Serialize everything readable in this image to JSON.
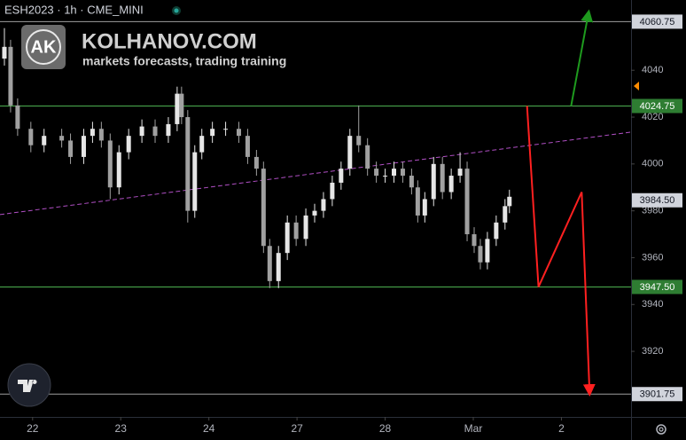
{
  "header": {
    "symbol": "ESH2023 · 1h · CME_MINI",
    "logo": "AK",
    "brand": "KOLHANOV.COM",
    "tagline": "markets forecasts, trading training"
  },
  "chart_data": {
    "type": "candlestick",
    "up_color": "#e6e6e6",
    "down_color": "#a0a0a0",
    "xlim": [
      -0.37,
      6.79
    ],
    "ylim": [
      3892,
      4070
    ],
    "xticks": [
      {
        "value": 0,
        "label": "22"
      },
      {
        "value": 1,
        "label": "23"
      },
      {
        "value": 2,
        "label": "24"
      },
      {
        "value": 3,
        "label": "27"
      },
      {
        "value": 4,
        "label": "28"
      },
      {
        "value": 5,
        "label": "Mar"
      },
      {
        "value": 6,
        "label": "2"
      }
    ],
    "yticks": [
      4040,
      4020,
      4000,
      3980,
      3960,
      3940,
      3920
    ],
    "x": [
      -0.32,
      -0.25,
      -0.17,
      -0.02,
      0.13,
      0.33,
      0.43,
      0.58,
      0.68,
      0.78,
      0.88,
      0.98,
      1.09,
      1.24,
      1.39,
      1.54,
      1.64,
      1.69,
      1.76,
      1.84,
      1.92,
      2.04,
      2.19,
      2.34,
      2.44,
      2.54,
      2.62,
      2.69,
      2.79,
      2.89,
      2.99,
      3.1,
      3.2,
      3.3,
      3.4,
      3.5,
      3.6,
      3.7,
      3.8,
      3.9,
      4.0,
      4.1,
      4.2,
      4.3,
      4.37,
      4.45,
      4.55,
      4.65,
      4.75,
      4.85,
      4.93,
      5.01,
      5.08,
      5.16,
      5.26,
      5.36,
      5.41
    ],
    "open": [
      4045,
      4050,
      4025,
      4015,
      4008,
      4012,
      4010,
      4003,
      4012,
      4015,
      4010,
      3990,
      4005,
      4012,
      4016,
      4012,
      4017,
      4030,
      4020,
      3980,
      4005,
      4012,
      4015,
      4015,
      4012,
      4003,
      3998,
      3965,
      3950,
      3962,
      3975,
      3968,
      3978,
      3980,
      3985,
      3992,
      3998,
      4012,
      4008,
      3998,
      3995,
      3995,
      3998,
      3995,
      3990,
      3978,
      3985,
      4000,
      3988,
      3995,
      3998,
      3970,
      3965,
      3958,
      3968,
      3975,
      3982
    ],
    "high": [
      4058,
      4053,
      4028,
      4018,
      4015,
      4015,
      4013,
      4015,
      4018,
      4018,
      4013,
      4008,
      4015,
      4019,
      4019,
      4020,
      4033,
      4033,
      4023,
      4008,
      4015,
      4018,
      4018,
      4018,
      4015,
      4006,
      4001,
      3968,
      3965,
      3978,
      3978,
      3981,
      3983,
      3988,
      3995,
      4001,
      4015,
      4025,
      4011,
      4001,
      3998,
      4001,
      4001,
      3998,
      3993,
      3988,
      4003,
      4003,
      3998,
      4005,
      4001,
      3973,
      3968,
      3971,
      3978,
      3985,
      3989
    ],
    "low": [
      4042,
      4022,
      4012,
      4005,
      4005,
      4007,
      4000,
      4000,
      4009,
      4007,
      3985,
      3987,
      4002,
      4009,
      4009,
      4009,
      4014,
      4017,
      3975,
      3977,
      4002,
      4009,
      4012,
      4009,
      4000,
      3995,
      3962,
      3947,
      3947,
      3959,
      3965,
      3965,
      3975,
      3977,
      3982,
      3989,
      3995,
      4005,
      3995,
      3992,
      3992,
      3992,
      3992,
      3987,
      3975,
      3975,
      3982,
      3985,
      3985,
      3992,
      3967,
      3962,
      3955,
      3955,
      3965,
      3972,
      3979
    ],
    "close": [
      4050,
      4025,
      4015,
      4008,
      4012,
      4010,
      4003,
      4012,
      4015,
      4010,
      3990,
      4005,
      4012,
      4016,
      4012,
      4017,
      4030,
      4020,
      3980,
      4005,
      4012,
      4015,
      4015,
      4012,
      4003,
      3998,
      3965,
      3950,
      3962,
      3975,
      3968,
      3978,
      3980,
      3985,
      3992,
      3998,
      4012,
      4008,
      3998,
      3995,
      3995,
      3998,
      3995,
      3990,
      3978,
      3985,
      4000,
      3988,
      3995,
      3998,
      3970,
      3965,
      3958,
      3968,
      3975,
      3982,
      3986
    ],
    "levels": [
      {
        "price": 4060.75,
        "color": "#9e9e9e",
        "label_bg": "#d1d4dc",
        "label_color": "#131722"
      },
      {
        "price": 4024.75,
        "color": "#4caf50",
        "label_bg": "#2e7d32",
        "label_color": "#ffffff"
      },
      {
        "price": 3947.5,
        "label": "3947.50",
        "color": "#4caf50",
        "label_bg": "#2e7d32",
        "label_color": "#ffffff"
      },
      {
        "price": 3901.75,
        "color": "#9e9e9e",
        "label_bg": "#d1d4dc",
        "label_color": "#131722"
      }
    ],
    "last_price": {
      "value": 3984.5,
      "label": "3984.50",
      "label_bg": "#d1d4dc",
      "label_color": "#131722"
    },
    "trendline": {
      "x": [
        -0.37,
        6.79
      ],
      "y": [
        3978.4,
        4013.6
      ],
      "color": "#b04fc4"
    },
    "projections": [
      {
        "x": [
          6.11,
          6.31
        ],
        "y": [
          4024.75,
          4065
        ],
        "color": "#1e9a1e"
      },
      {
        "x": [
          5.61,
          5.74,
          6.23,
          6.32
        ],
        "y": [
          4024.75,
          3947.5,
          3988,
          3901.75
        ],
        "color": "#ff2020"
      }
    ]
  }
}
